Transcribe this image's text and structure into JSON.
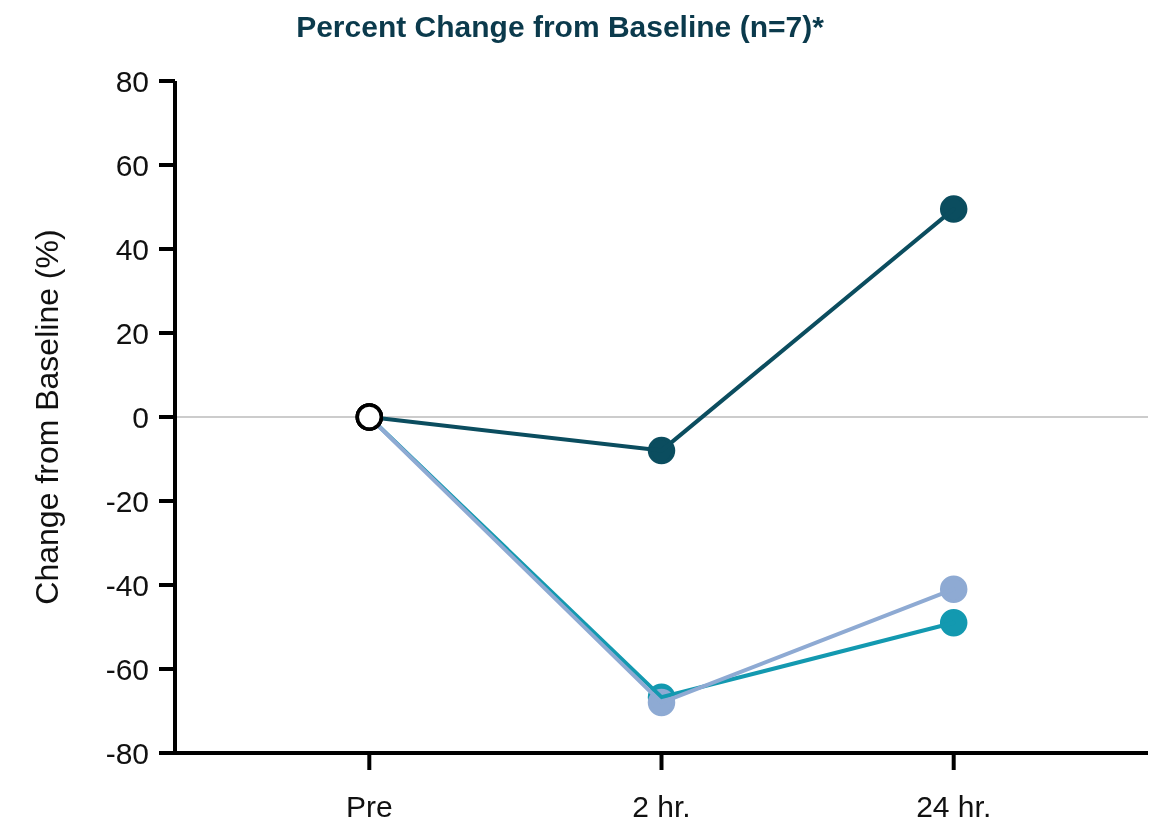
{
  "chart_data": {
    "type": "line",
    "title": "Percent Change from Baseline (n=7)*",
    "ylabel": "Change from Baseline (%)",
    "categories": [
      "Pre",
      "2 hr.",
      "24 hr."
    ],
    "series": [
      {
        "color": "#0b4d5f",
        "colors": [
          "#ffffff",
          "#0b4d5f",
          "#0b4d5f"
        ],
        "values": [
          0,
          -8,
          49.5
        ]
      },
      {
        "color": "#1399b0",
        "colors": [
          "#ffffff",
          "#1399b0",
          "#1399b0"
        ],
        "values": [
          0,
          -66.7,
          -49
        ]
      },
      {
        "color": "#8eaad3",
        "colors": [
          "#ffffff",
          "#8eaad3",
          "#8eaad3"
        ],
        "values": [
          0,
          -68,
          -41
        ]
      }
    ],
    "ylim": [
      -80,
      80
    ],
    "yticks": [
      -80,
      -60,
      -40,
      -20,
      0,
      20,
      40,
      60,
      80
    ],
    "ref_lines": [
      {
        "axis": "y",
        "value": 0,
        "color": "#cccccc"
      }
    ],
    "marker": "circle",
    "line_style": "solid",
    "grid": false
  }
}
